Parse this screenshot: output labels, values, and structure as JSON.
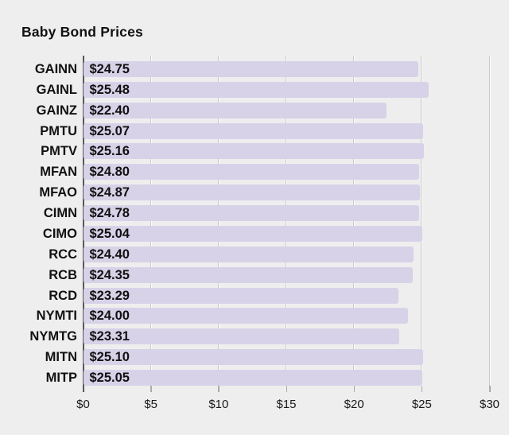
{
  "title": "Baby Bond Prices",
  "colors": {
    "background": "#eeeeee",
    "bar": "#d8d2e8",
    "axis_line": "#59595b",
    "grid_dark": "#c9c9c9",
    "grid_light": "#fbfbfb",
    "tick": "#ababab",
    "text": "#111111"
  },
  "chart_data": {
    "type": "bar",
    "orientation": "horizontal",
    "title": "Baby Bond Prices",
    "categories": [
      "GAINN",
      "GAINL",
      "GAINZ",
      "PMTU",
      "PMTV",
      "MFAN",
      "MFAO",
      "CIMN",
      "CIMO",
      "RCC",
      "RCB",
      "RCD",
      "NYMTI",
      "NYMTG",
      "MITN",
      "MITP"
    ],
    "values": [
      24.75,
      25.48,
      22.4,
      25.07,
      25.16,
      24.8,
      24.87,
      24.78,
      25.04,
      24.4,
      24.35,
      23.29,
      24.0,
      23.31,
      25.1,
      25.05
    ],
    "value_labels": [
      "$24.75",
      "$25.48",
      "$22.40",
      "$25.07",
      "$25.16",
      "$24.80",
      "$24.87",
      "$24.78",
      "$25.04",
      "$24.40",
      "$24.35",
      "$23.29",
      "$24.00",
      "$23.31",
      "$25.10",
      "$25.05"
    ],
    "xlabel": "",
    "ylabel": "",
    "xlim": [
      0,
      30
    ],
    "x_ticks": [
      0,
      5,
      10,
      15,
      20,
      25,
      30
    ],
    "x_tick_labels": [
      "$0",
      "$5",
      "$10",
      "$15",
      "$20",
      "$25",
      "$30"
    ],
    "grid": true,
    "legend": false
  }
}
